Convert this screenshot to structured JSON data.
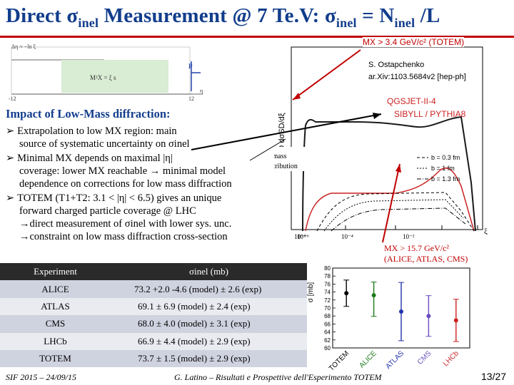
{
  "title": {
    "pre": "Direct ",
    "sigma": "σ",
    "inel_sub": "inel",
    "mid": " Measurement @ 7 Te.V: ",
    "sigma2": "σ",
    "inel_sub2": "inel",
    "eq": " = N",
    "inel_sub3": "inel",
    "tail": " /L"
  },
  "diagram": {
    "formula": "Δη ≈ −ln ξ",
    "box_formula": "M²X = ξ s",
    "p_label": "P",
    "eta_left": "-12",
    "eta_right": "12",
    "eta_axis": "η"
  },
  "section_heading": "Impact of Low-Mass diffraction:",
  "bullets": [
    {
      "lines": [
        "Extrapolation to low MX region: main",
        "source of systematic uncertainty on σinel"
      ]
    },
    {
      "lines": [
        "Minimal MX depends on maximal |η|",
        "coverage: lower MX reachable → minimal model",
        "dependence on corrections for low mass diffraction"
      ]
    },
    {
      "lines": [
        "TOTEM (T1+T2: 3.1 < |η| < 6.5) gives an unique",
        "forward charged particle coverage @ LHC",
        "→direct measurement of σinel with lower sys. unc.",
        "→constraint on  low mass diffraction cross-section"
      ]
    }
  ],
  "right_plot": {
    "mx_top": "MX > 3.4 GeV/c² (TOTEM)",
    "reference_author": "S. Ostapchenko",
    "reference_arxiv": "ar.Xiv:1103.5684v2 [hep-ph]",
    "ylabel": "ξ/σSD  dσSD/dξ",
    "model1": "QGSJET-II-4",
    "model2": "SIBYLL / PYTHIA8",
    "low_mass_label1": "low mass",
    "low_mass_label2": "contribution",
    "legend": [
      "b = 0.3 fm",
      "b = 1 fm",
      "b = 1.3 fm"
    ],
    "xtick1": "10⁻⁸",
    "xtick2": "10⁻⁶",
    "xtick3": "10⁻⁴",
    "xtick4": "10⁻²",
    "xaxis": "ξ",
    "mx_bottom1": "MX > 15.7 GeV/c²",
    "mx_bottom2": "(ALICE, ATLAS, CMS)"
  },
  "table": {
    "header": [
      "Experiment",
      "σinel (mb)"
    ],
    "rows": [
      {
        "exp": "ALICE",
        "val": "73.2 +2.0 -4.6 (model) ± 2.6 (exp)"
      },
      {
        "exp": "ATLAS",
        "val": "69.1 ± 6.9 (model) ± 2.4 (exp)"
      },
      {
        "exp": "CMS",
        "val": "68.0 ± 4.0 (model) ± 3.1 (exp)"
      },
      {
        "exp": "LHCb",
        "val": "66.9 ± 4.4 (model) ± 2.9 (exp)"
      },
      {
        "exp": "TOTEM",
        "val": "73.7 ± 1.5 (model) ± 2.9 (exp)"
      }
    ]
  },
  "chart_data": {
    "type": "scatter",
    "ylabel": "σ [mb]",
    "ylim": [
      60,
      80
    ],
    "yticks": [
      "80",
      "78",
      "76",
      "74",
      "72",
      "70",
      "68",
      "66",
      "64",
      "62",
      "60"
    ],
    "categories": [
      "TOTEM",
      "ALICE",
      "ATLAS",
      "CMS",
      "LHCb"
    ],
    "points": [
      {
        "label": "TOTEM",
        "y": 73.7,
        "err_lo": 3.3,
        "err_hi": 3.3,
        "color": "#000000"
      },
      {
        "label": "ALICE",
        "y": 73.2,
        "err_lo": 5.3,
        "err_hi": 3.3,
        "color": "#1a7a1a"
      },
      {
        "label": "ATLAS",
        "y": 69.1,
        "err_lo": 7.3,
        "err_hi": 7.3,
        "color": "#2233aa"
      },
      {
        "label": "CMS",
        "y": 68.0,
        "err_lo": 5.1,
        "err_hi": 5.1,
        "color": "#6a4fbf"
      },
      {
        "label": "LHCb",
        "y": 66.9,
        "err_lo": 5.3,
        "err_hi": 5.3,
        "color": "#cc2222"
      }
    ]
  },
  "footer": {
    "left": "SIF 2015 – 24/09/15",
    "center": "G. Latino – Risultati e Prospettive dell'Esperimento TOTEM",
    "page": "13/27"
  }
}
